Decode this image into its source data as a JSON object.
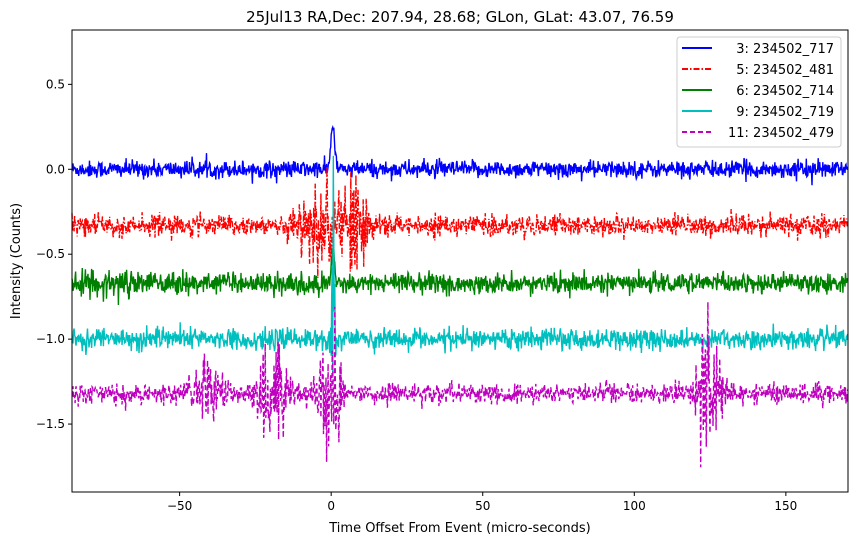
{
  "chart_data": {
    "type": "line",
    "title": "25Jul13 RA,Dec:  207.94,  28.68; GLon, GLat:   43.07,  76.59",
    "xlabel": "Time Offset From Event (micro-seconds)",
    "ylabel": "Intensity (Counts)",
    "xlim": [
      -85.5,
      170.5
    ],
    "ylim": [
      -1.9,
      0.82
    ],
    "xticks": [
      -50,
      0,
      50,
      100,
      150
    ],
    "xtick_labels": [
      "−50",
      "0",
      "50",
      "100",
      "150"
    ],
    "yticks": [
      0.5,
      0.0,
      -0.5,
      -1.0,
      -1.5
    ],
    "ytick_labels": [
      "0.5",
      "0.0",
      "−0.5",
      "−1.0",
      "−1.5"
    ],
    "grid": false,
    "legend_placement": "top-right",
    "series": [
      {
        "name": "3: 234502_717",
        "color": "#0000ff",
        "dash": "solid",
        "baseline": 0.0,
        "noise": 0.025,
        "features": [
          {
            "x": 0.5,
            "amp": 0.3,
            "width": 0.6
          }
        ]
      },
      {
        "name": "5: 234502_481",
        "color": "#ff0000",
        "dash": "dashdot",
        "baseline": -0.33,
        "noise": 0.03,
        "features": [
          {
            "x": -5,
            "amp": 0.12,
            "width": 6,
            "burst": true
          },
          {
            "x": 5,
            "amp": 0.15,
            "width": 5,
            "burst": true
          }
        ]
      },
      {
        "name": "6: 234502_714",
        "color": "#008000",
        "dash": "solid",
        "baseline": -0.67,
        "noise": 0.03,
        "features": [
          {
            "x": -70,
            "amp": 0.04,
            "width": 10,
            "burst": true
          },
          {
            "x": 0.5,
            "amp": 0.25,
            "width": 0.5
          }
        ]
      },
      {
        "name": "9: 234502_719",
        "color": "#00bfbf",
        "dash": "solid",
        "baseline": -1.0,
        "noise": 0.03,
        "features": [
          {
            "x": 0.5,
            "amp": 0.4,
            "width": 0.6,
            "burst": true
          }
        ]
      },
      {
        "name": "11: 234502_479",
        "color": "#bf00bf",
        "dash": "dashed",
        "baseline": -1.32,
        "noise": 0.03,
        "features": [
          {
            "x": -40,
            "amp": 0.1,
            "width": 4,
            "burst": true
          },
          {
            "x": -20,
            "amp": 0.15,
            "width": 4,
            "burst": true
          },
          {
            "x": 0,
            "amp": 0.2,
            "width": 3,
            "burst": true
          },
          {
            "x": 125,
            "amp": 0.22,
            "width": 3,
            "burst": true
          }
        ]
      }
    ]
  }
}
